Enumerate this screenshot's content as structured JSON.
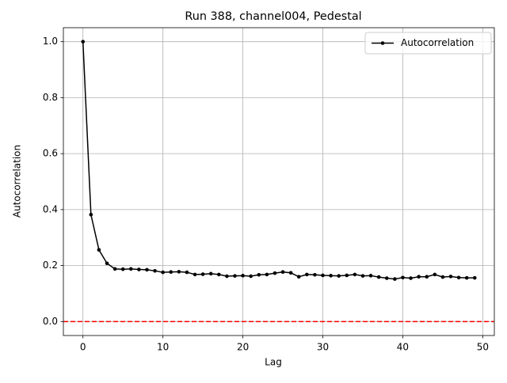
{
  "chart_data": {
    "type": "line",
    "title": "Run 388, channel004, Pedestal",
    "x_label": "Lag",
    "y_label": "Autocorrelation",
    "x": [
      0,
      1,
      2,
      3,
      4,
      5,
      6,
      7,
      8,
      9,
      10,
      11,
      12,
      13,
      14,
      15,
      16,
      17,
      18,
      19,
      20,
      21,
      22,
      23,
      24,
      25,
      26,
      27,
      28,
      29,
      30,
      31,
      32,
      33,
      34,
      35,
      36,
      37,
      38,
      39,
      40,
      41,
      42,
      43,
      44,
      45,
      46,
      47,
      48,
      49
    ],
    "series": [
      {
        "name": "Autocorrelation",
        "color": "#000000",
        "values": [
          1.0,
          0.382,
          0.256,
          0.208,
          0.188,
          0.187,
          0.188,
          0.186,
          0.185,
          0.181,
          0.176,
          0.177,
          0.178,
          0.176,
          0.168,
          0.169,
          0.171,
          0.168,
          0.162,
          0.163,
          0.164,
          0.162,
          0.167,
          0.168,
          0.173,
          0.177,
          0.174,
          0.16,
          0.168,
          0.167,
          0.165,
          0.164,
          0.163,
          0.165,
          0.168,
          0.163,
          0.164,
          0.159,
          0.155,
          0.152,
          0.157,
          0.155,
          0.16,
          0.16,
          0.168,
          0.159,
          0.161,
          0.157,
          0.156,
          0.156
        ]
      }
    ],
    "reference_line": {
      "value": 0,
      "color": "#ff0000"
    },
    "xlim": [
      -2.45,
      51.45
    ],
    "ylim": [
      -0.05,
      1.05
    ],
    "xticks": [
      0,
      10,
      20,
      30,
      40,
      50
    ],
    "yticks": [
      {
        "value": 0,
        "label": "0.0"
      },
      {
        "value": 0.2,
        "label": "0.2"
      },
      {
        "value": 0.4,
        "label": "0.4"
      },
      {
        "value": 0.6,
        "label": "0.6"
      },
      {
        "value": 0.8,
        "label": "0.8"
      },
      {
        "value": 1,
        "label": "1.0"
      }
    ],
    "grid": true,
    "legend": "upper right"
  }
}
